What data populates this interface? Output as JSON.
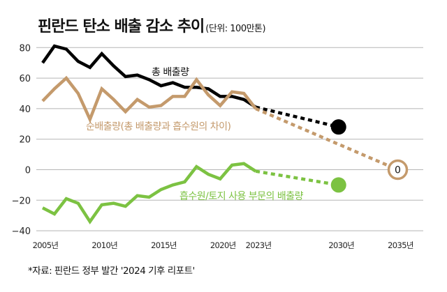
{
  "title": "핀란드 탄소 배출 감소 추이",
  "unit": "(단위: 100만톤)",
  "source": "*자료: 핀란드 정부 발간 '2024 기후 리포트'",
  "colors": {
    "total": "#000000",
    "net": "#c49a6c",
    "sink": "#7cc242",
    "grid": "#b5b5b5"
  },
  "chart_data": {
    "type": "line",
    "title": "핀란드 탄소 배출 감소 추이",
    "ylabel": "(단위: 100만톤)",
    "xlabel": "",
    "ylim": [
      -40,
      80
    ],
    "xlim": [
      2005,
      2035
    ],
    "grid": true,
    "yticks": [
      80,
      60,
      40,
      20,
      0,
      -20,
      -40
    ],
    "ytick_labels": [
      "80",
      "60",
      "40",
      "20",
      "0",
      "−20",
      "−40"
    ],
    "xticks": [
      2005,
      2010,
      2015,
      2020,
      2023,
      2030,
      2035
    ],
    "xtick_labels": [
      "2005년",
      "2010년",
      "2015년",
      "2020년",
      "2023년",
      "2030년",
      "2035년"
    ],
    "x": [
      2005,
      2006,
      2007,
      2008,
      2009,
      2010,
      2011,
      2012,
      2013,
      2014,
      2015,
      2016,
      2017,
      2018,
      2019,
      2020,
      2021,
      2022,
      2023
    ],
    "series": [
      {
        "name": "총 배출량",
        "key": "total",
        "values": [
          70,
          81,
          79,
          71,
          67,
          76,
          68,
          61,
          62,
          59,
          55,
          57,
          54,
          54,
          53,
          48,
          48,
          46,
          41
        ],
        "projection": {
          "x": [
            2023,
            2030
          ],
          "values": [
            41,
            28
          ]
        }
      },
      {
        "name": "순배출량(총 배출량과 흡수원의 차이)",
        "key": "net",
        "values": [
          45,
          53,
          60,
          50,
          33,
          53,
          46,
          38,
          46,
          41,
          42,
          48,
          48,
          59,
          49,
          42,
          51,
          50,
          40
        ],
        "projection": {
          "x": [
            2023,
            2035
          ],
          "values": [
            40,
            0
          ]
        },
        "target_label": "0"
      },
      {
        "name": "흡수원/토지 사용 부문의 배출량",
        "key": "sink",
        "values": [
          -25,
          -29,
          -19,
          -22,
          -34,
          -23,
          -22,
          -24,
          -17,
          -18,
          -13,
          -10,
          -8,
          2,
          -3,
          -6,
          3,
          4,
          -1
        ],
        "projection": {
          "x": [
            2023,
            2030
          ],
          "values": [
            -1,
            -10
          ]
        }
      }
    ]
  }
}
